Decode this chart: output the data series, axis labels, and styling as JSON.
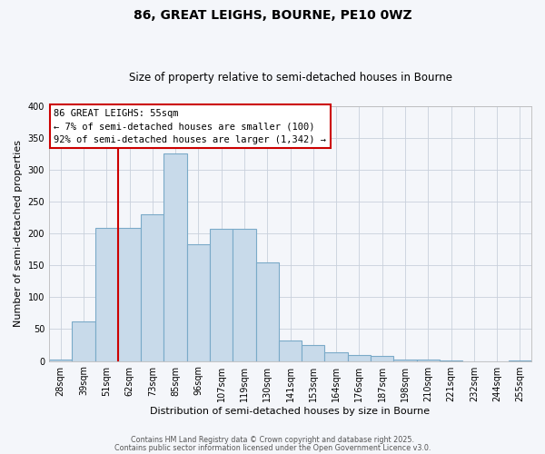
{
  "title": "86, GREAT LEIGHS, BOURNE, PE10 0WZ",
  "subtitle": "Size of property relative to semi-detached houses in Bourne",
  "xlabel": "Distribution of semi-detached houses by size in Bourne",
  "ylabel": "Number of semi-detached properties",
  "bins": [
    "28sqm",
    "39sqm",
    "51sqm",
    "62sqm",
    "73sqm",
    "85sqm",
    "96sqm",
    "107sqm",
    "119sqm",
    "130sqm",
    "141sqm",
    "153sqm",
    "164sqm",
    "176sqm",
    "187sqm",
    "198sqm",
    "210sqm",
    "221sqm",
    "232sqm",
    "244sqm",
    "255sqm"
  ],
  "values": [
    2,
    62,
    209,
    209,
    230,
    325,
    183,
    207,
    207,
    155,
    32,
    25,
    14,
    10,
    8,
    2,
    2,
    1,
    0,
    0,
    1
  ],
  "bar_color": "#c8daea",
  "bar_edge_color": "#7aaac8",
  "vline_x_idx": 2.5,
  "vline_color": "#cc0000",
  "ylim": [
    0,
    400
  ],
  "yticks": [
    0,
    50,
    100,
    150,
    200,
    250,
    300,
    350,
    400
  ],
  "annotation_title": "86 GREAT LEIGHS: 55sqm",
  "annotation_line1": "← 7% of semi-detached houses are smaller (100)",
  "annotation_line2": "92% of semi-detached houses are larger (1,342) →",
  "annotation_box_facecolor": "#ffffff",
  "annotation_box_edgecolor": "#cc0000",
  "footer1": "Contains HM Land Registry data © Crown copyright and database right 2025.",
  "footer2": "Contains public sector information licensed under the Open Government Licence v3.0.",
  "fig_bg_color": "#f4f6fa",
  "plot_bg_color": "#f4f6fa",
  "grid_color": "#c8d0dc",
  "title_fontsize": 10,
  "subtitle_fontsize": 8.5,
  "tick_fontsize": 7,
  "label_fontsize": 8,
  "annotation_fontsize": 7.5
}
